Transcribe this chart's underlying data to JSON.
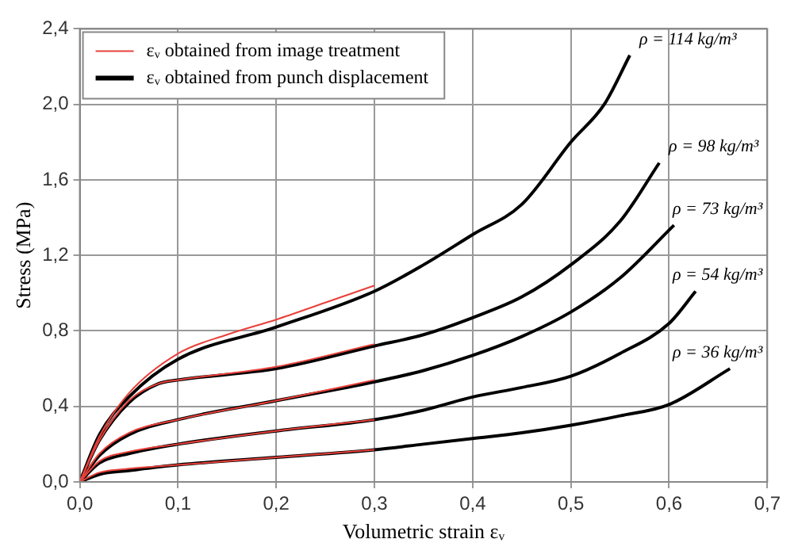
{
  "chart_data": {
    "type": "line",
    "xlabel": "Volumetric strain εᵥ",
    "ylabel": "Stress (MPa)",
    "xlim": [
      0,
      0.7
    ],
    "ylim": [
      0,
      2.4
    ],
    "xticks": [
      {
        "value": 0,
        "label": "0,0"
      },
      {
        "value": 0.1,
        "label": "0,1"
      },
      {
        "value": 0.2,
        "label": "0,2"
      },
      {
        "value": 0.3,
        "label": "0,3"
      },
      {
        "value": 0.4,
        "label": "0,4"
      },
      {
        "value": 0.5,
        "label": "0,5"
      },
      {
        "value": 0.6,
        "label": "0,6"
      },
      {
        "value": 0.7,
        "label": "0,7"
      }
    ],
    "yticks": [
      {
        "value": 0,
        "label": "0,0"
      },
      {
        "value": 0.4,
        "label": "0,4"
      },
      {
        "value": 0.8,
        "label": "0,8"
      },
      {
        "value": 1.2,
        "label": "1,2"
      },
      {
        "value": 1.6,
        "label": "1,6"
      },
      {
        "value": 2.0,
        "label": "2,0"
      },
      {
        "value": 2.4,
        "label": "2,4"
      }
    ],
    "grid": true,
    "legend": "top left",
    "marker": "none",
    "line_style": "solid",
    "series": [
      {
        "name": "εᵥ obtained from image treatment",
        "color": "#e8403a",
        "x": [
          0,
          0.02,
          0.05,
          0.1,
          0.15,
          0.2,
          0.25,
          0.3
        ],
        "values": [
          0,
          0.24,
          0.47,
          0.68,
          0.78,
          0.86,
          0.95,
          1.04
        ]
      },
      {
        "color": "#e8403a",
        "x": [
          0,
          0.02,
          0.05,
          0.08,
          0.1,
          0.2,
          0.3
        ],
        "values": [
          0,
          0.22,
          0.43,
          0.52,
          0.54,
          0.61,
          0.73
        ]
      },
      {
        "color": "#e8403a",
        "x": [
          0,
          0.02,
          0.05,
          0.1,
          0.2,
          0.3
        ],
        "values": [
          0,
          0.15,
          0.26,
          0.33,
          0.43,
          0.54
        ]
      },
      {
        "color": "#e8403a",
        "x": [
          0,
          0.02,
          0.05,
          0.1,
          0.2,
          0.3
        ],
        "values": [
          0,
          0.11,
          0.16,
          0.2,
          0.27,
          0.33
        ]
      },
      {
        "color": "#e8403a",
        "x": [
          0,
          0.02,
          0.05,
          0.1,
          0.2,
          0.3
        ],
        "values": [
          0,
          0.05,
          0.07,
          0.09,
          0.13,
          0.17
        ]
      },
      {
        "name": "εᵥ obtained from punch displacement",
        "color": "#000000",
        "x": [
          0,
          0.02,
          0.05,
          0.1,
          0.2,
          0.3,
          0.35,
          0.4,
          0.45,
          0.5,
          0.534,
          0.56
        ],
        "values": [
          0,
          0.25,
          0.45,
          0.65,
          0.82,
          1.01,
          1.15,
          1.31,
          1.47,
          1.8,
          2.0,
          2.26
        ]
      },
      {
        "color": "#000000",
        "x": [
          0,
          0.02,
          0.05,
          0.08,
          0.1,
          0.2,
          0.3,
          0.35,
          0.4,
          0.45,
          0.5,
          0.55,
          0.59
        ],
        "values": [
          0,
          0.22,
          0.42,
          0.52,
          0.54,
          0.6,
          0.72,
          0.78,
          0.87,
          0.98,
          1.15,
          1.38,
          1.69
        ]
      },
      {
        "color": "#000000",
        "x": [
          0,
          0.02,
          0.05,
          0.1,
          0.2,
          0.3,
          0.35,
          0.4,
          0.45,
          0.5,
          0.55,
          0.605
        ],
        "values": [
          0,
          0.14,
          0.25,
          0.33,
          0.43,
          0.53,
          0.59,
          0.67,
          0.77,
          0.9,
          1.08,
          1.36
        ]
      },
      {
        "color": "#000000",
        "x": [
          0,
          0.02,
          0.05,
          0.1,
          0.2,
          0.3,
          0.35,
          0.4,
          0.45,
          0.5,
          0.55,
          0.6,
          0.627
        ],
        "values": [
          0,
          0.1,
          0.15,
          0.2,
          0.27,
          0.33,
          0.38,
          0.45,
          0.5,
          0.56,
          0.68,
          0.84,
          1.01
        ]
      },
      {
        "color": "#000000",
        "x": [
          0,
          0.02,
          0.05,
          0.1,
          0.2,
          0.3,
          0.35,
          0.4,
          0.45,
          0.5,
          0.55,
          0.6,
          0.662
        ],
        "values": [
          0,
          0.04,
          0.06,
          0.09,
          0.13,
          0.17,
          0.2,
          0.23,
          0.26,
          0.3,
          0.35,
          0.41,
          0.6
        ]
      }
    ],
    "annotations": [
      {
        "text": "ρ = 114 kg/m³",
        "x": 0.56,
        "y": 2.26
      },
      {
        "text": "ρ = 98 kg/m³",
        "x": 0.59,
        "y": 1.69
      },
      {
        "text": "ρ = 73 kg/m³",
        "x": 0.605,
        "y": 1.36
      },
      {
        "text": "ρ = 54 kg/m³",
        "x": 0.627,
        "y": 1.01
      },
      {
        "text": "ρ = 36 kg/m³",
        "x": 0.662,
        "y": 0.6
      }
    ]
  }
}
